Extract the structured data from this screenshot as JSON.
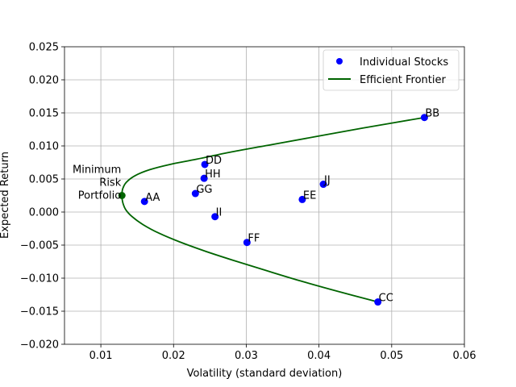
{
  "chart_data": {
    "type": "scatter",
    "title": "",
    "xlabel": "Volatility (standard deviation)",
    "ylabel": "Expected Return",
    "xlim": [
      0.005,
      0.06
    ],
    "ylim": [
      -0.02,
      0.025
    ],
    "xticks": [
      0.01,
      0.02,
      0.03,
      0.04,
      0.05,
      0.06
    ],
    "xtick_labels": [
      "0.01",
      "0.02",
      "0.03",
      "0.04",
      "0.05",
      "0.06"
    ],
    "yticks": [
      -0.02,
      -0.015,
      -0.01,
      -0.005,
      0.0,
      0.005,
      0.01,
      0.015,
      0.02,
      0.025
    ],
    "ytick_labels": [
      "−0.020",
      "−0.015",
      "−0.010",
      "−0.005",
      "0.000",
      "0.005",
      "0.010",
      "0.015",
      "0.020",
      "0.025"
    ],
    "grid": true,
    "legend_placement": "top-right",
    "series": [
      {
        "name": "Individual Stocks",
        "kind": "scatter",
        "color": "#0000ff",
        "points": [
          {
            "label": "AA",
            "x": 0.016,
            "y": 0.0016
          },
          {
            "label": "BB",
            "x": 0.0545,
            "y": 0.0143
          },
          {
            "label": "CC",
            "x": 0.0481,
            "y": -0.0136
          },
          {
            "label": "DD",
            "x": 0.0243,
            "y": 0.0072
          },
          {
            "label": "EE",
            "x": 0.0377,
            "y": 0.0019
          },
          {
            "label": "FF",
            "x": 0.0301,
            "y": -0.0046
          },
          {
            "label": "GG",
            "x": 0.023,
            "y": 0.0028
          },
          {
            "label": "HH",
            "x": 0.0242,
            "y": 0.0051
          },
          {
            "label": "II",
            "x": 0.0257,
            "y": -0.0007
          },
          {
            "label": "JJ",
            "x": 0.0406,
            "y": 0.0042
          }
        ]
      },
      {
        "name": "Efficient Frontier",
        "kind": "line",
        "color": "#006400",
        "min_variance": {
          "x": 0.0129,
          "y": 0.0025
        },
        "points": [
          [
            0.0481,
            -0.0136
          ],
          [
            0.0426,
            -0.012
          ],
          [
            0.0374,
            -0.0104
          ],
          [
            0.0326,
            -0.0088
          ],
          [
            0.0282,
            -0.0073
          ],
          [
            0.0243,
            -0.0059
          ],
          [
            0.0208,
            -0.0045
          ],
          [
            0.018,
            -0.0032
          ],
          [
            0.0158,
            -0.0019
          ],
          [
            0.0143,
            -0.0007
          ],
          [
            0.0134,
            0.0004
          ],
          [
            0.013,
            0.0015
          ],
          [
            0.0129,
            0.0025
          ],
          [
            0.013,
            0.0035
          ],
          [
            0.0135,
            0.0045
          ],
          [
            0.0147,
            0.0055
          ],
          [
            0.0167,
            0.0064
          ],
          [
            0.0195,
            0.0072
          ],
          [
            0.0232,
            0.008
          ],
          [
            0.028,
            0.0091
          ],
          [
            0.0335,
            0.0102
          ],
          [
            0.0395,
            0.0114
          ],
          [
            0.046,
            0.0127
          ],
          [
            0.0545,
            0.0143
          ]
        ]
      }
    ],
    "annotations": [
      {
        "text_lines": [
          "Minimum",
          "Risk",
          "Portfolio"
        ]
      }
    ]
  }
}
